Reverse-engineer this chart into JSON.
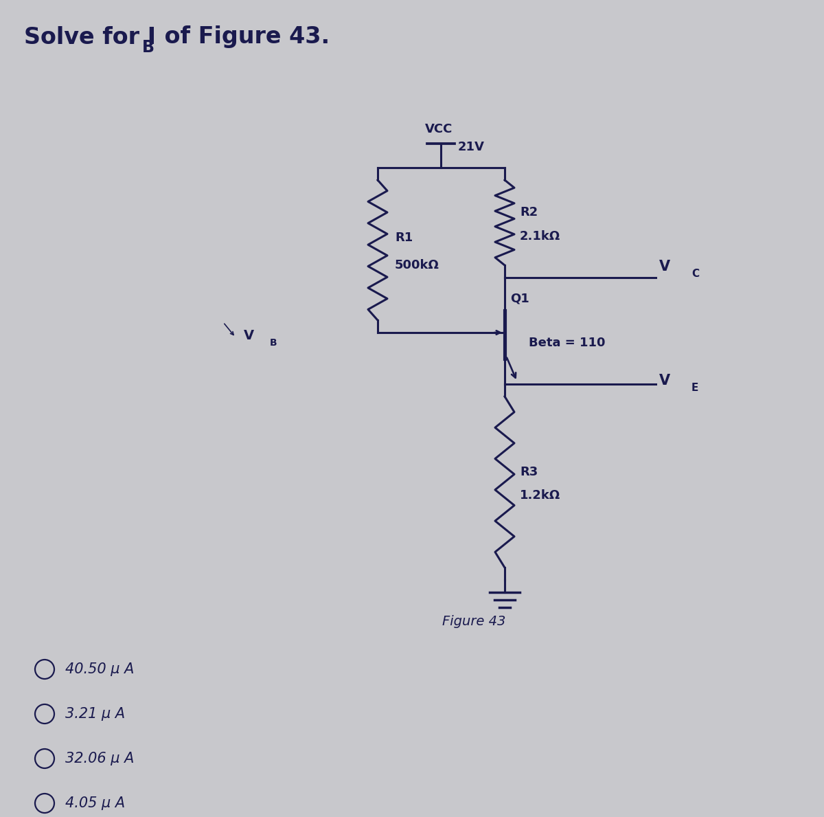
{
  "bg_color": "#c8c8cc",
  "line_color": "#1a1a4e",
  "text_color": "#1a1a4e",
  "vcc_label": "VCC",
  "vcc_voltage": "21V",
  "r1_label": "R1",
  "r1_value": "500kΩ",
  "r2_label": "R2",
  "r2_value": "2.1kΩ",
  "r3_label": "R3",
  "r3_value": "1.2kΩ",
  "q1_label": "Q1",
  "beta_label": "Beta = 110",
  "fig_label": "Figure 43",
  "options": [
    "40.50 μ A",
    "3.21 μ A",
    "32.06 μ A",
    "4.05 μ A"
  ]
}
